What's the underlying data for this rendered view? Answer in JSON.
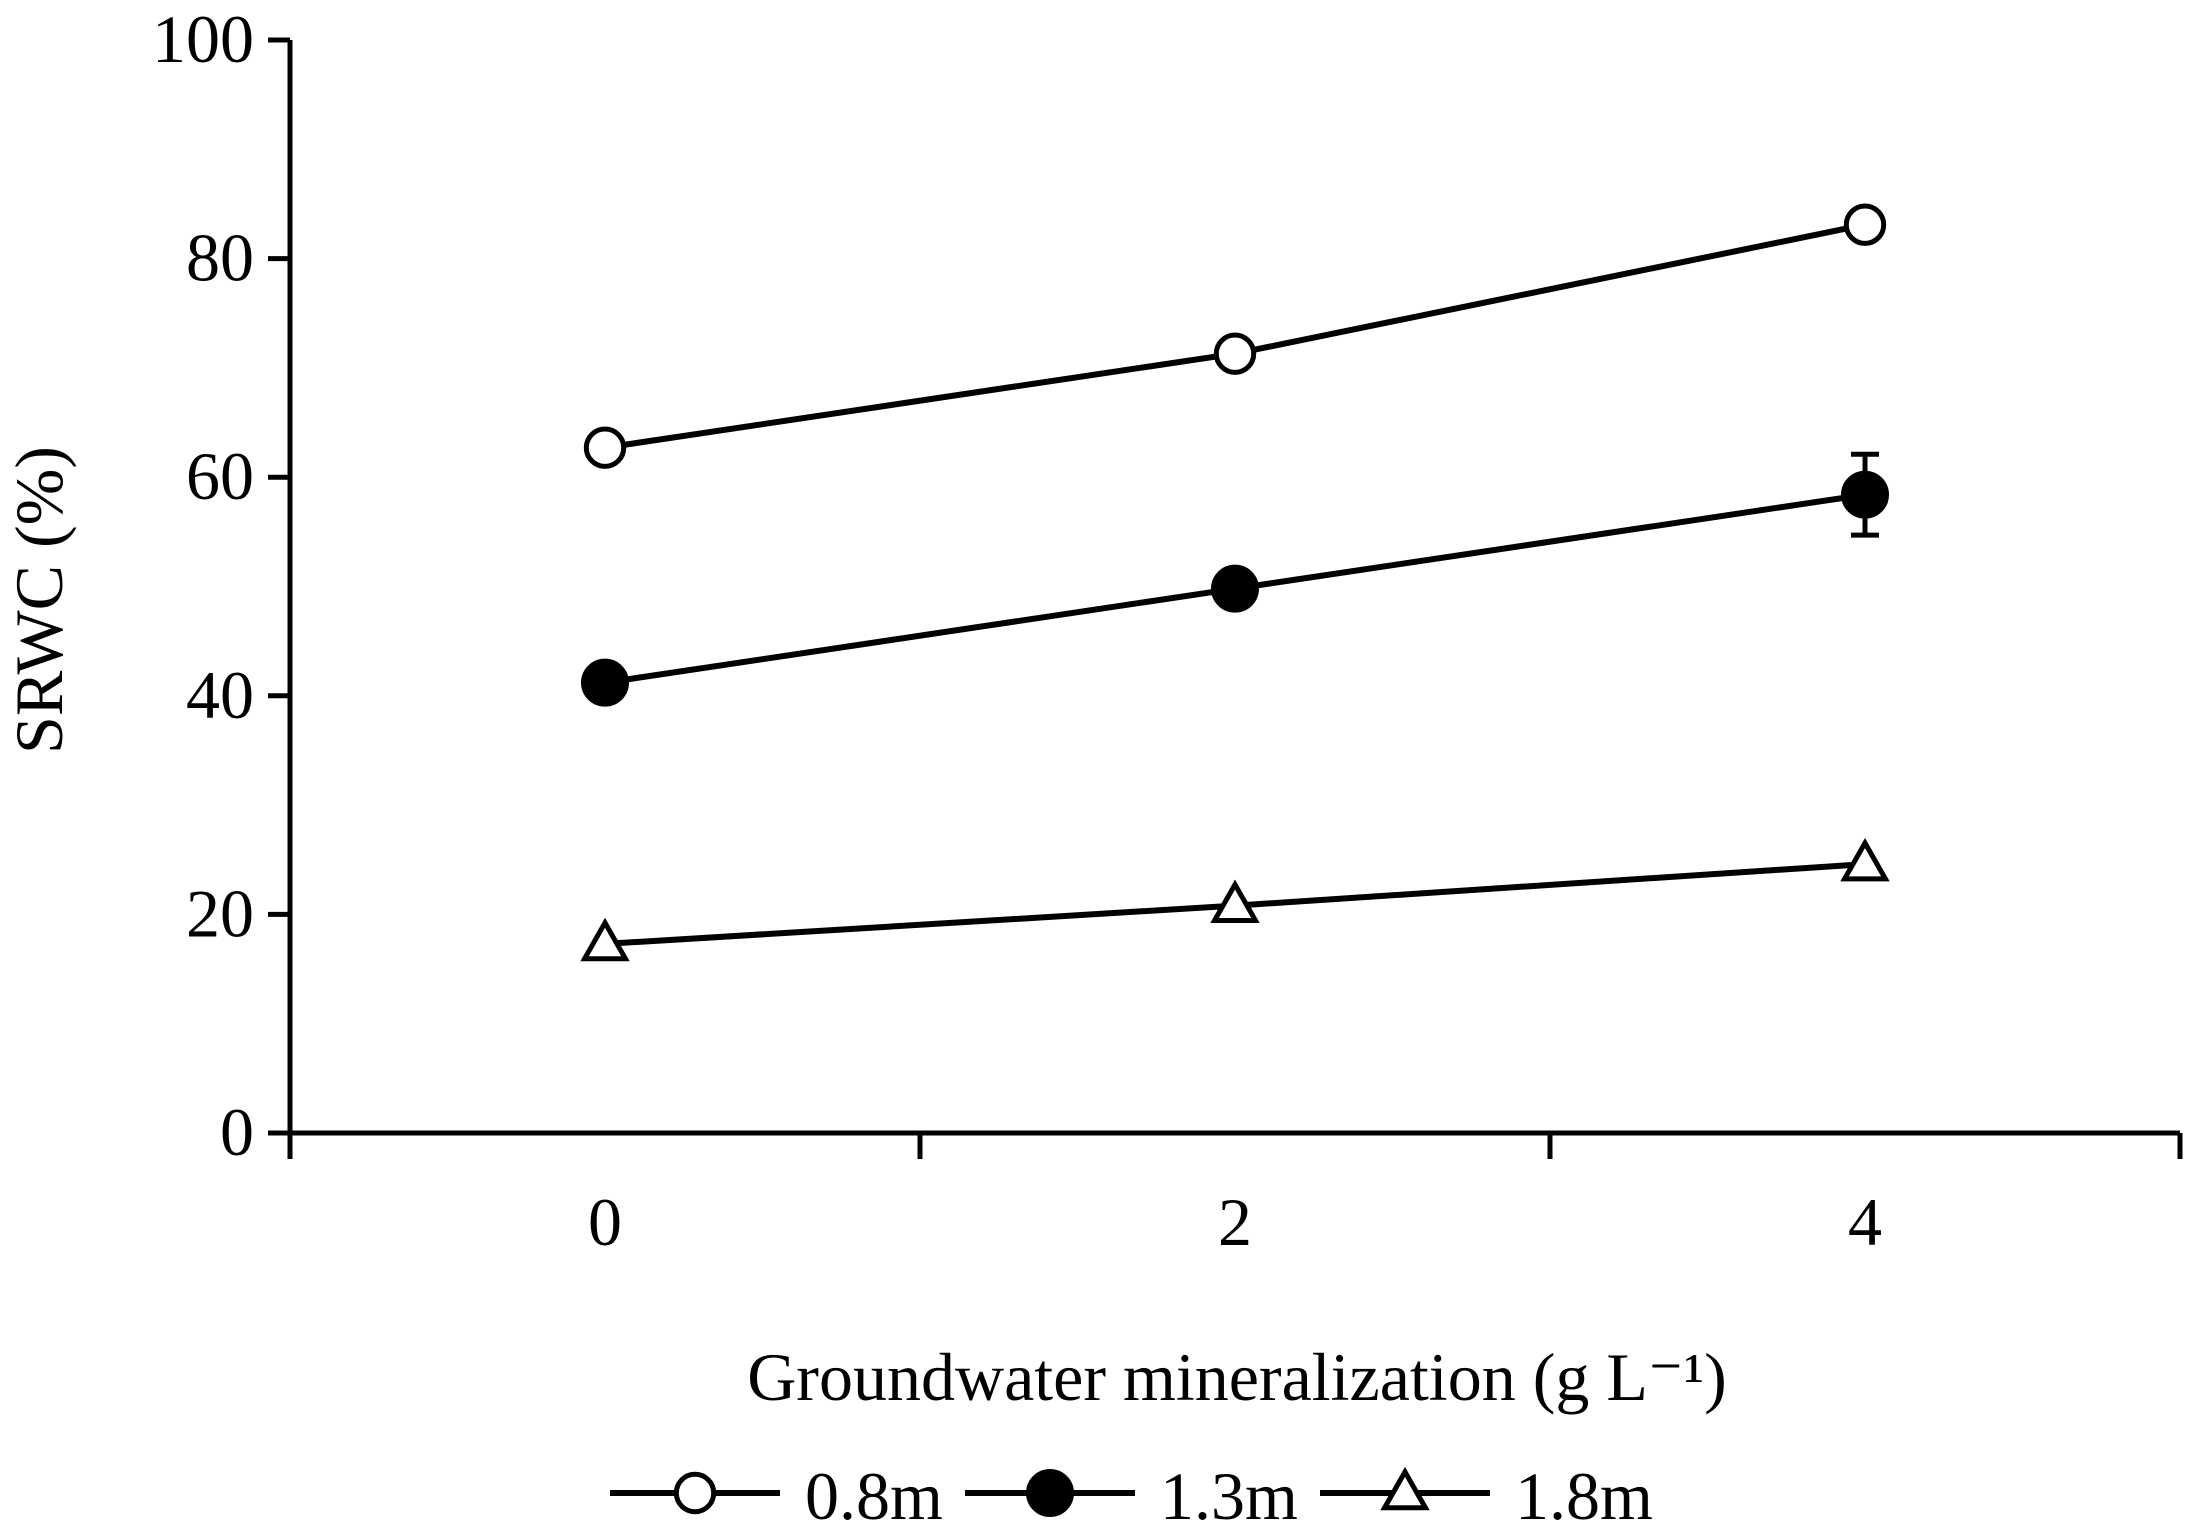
{
  "chart_data": {
    "type": "line",
    "title": "",
    "xlabel": "Groundwater mineralization (g L⁻¹)",
    "ylabel": "SRWC (%)",
    "categories": [
      "0",
      "2",
      "4"
    ],
    "x": [
      0,
      2,
      4
    ],
    "xlim": [
      -1,
      5
    ],
    "ylim": [
      0,
      100
    ],
    "yticks": [
      0,
      20,
      40,
      60,
      80,
      100
    ],
    "grid": false,
    "legend_position": "bottom",
    "series": [
      {
        "name": "0.8m",
        "marker": "open-circle",
        "values": [
          62.7,
          71.3,
          83.1
        ],
        "errors": [
          0.8,
          0.8,
          0.8
        ]
      },
      {
        "name": "1.3m",
        "marker": "filled-circle",
        "values": [
          41.2,
          49.8,
          58.4
        ],
        "errors": [
          0.8,
          0.8,
          3.7
        ]
      },
      {
        "name": "1.8m",
        "marker": "open-triangle",
        "values": [
          17.3,
          20.8,
          24.6
        ],
        "errors": [
          0.5,
          0.5,
          0.5
        ]
      }
    ]
  },
  "colors": {
    "line": "#000000",
    "background": "#ffffff"
  }
}
